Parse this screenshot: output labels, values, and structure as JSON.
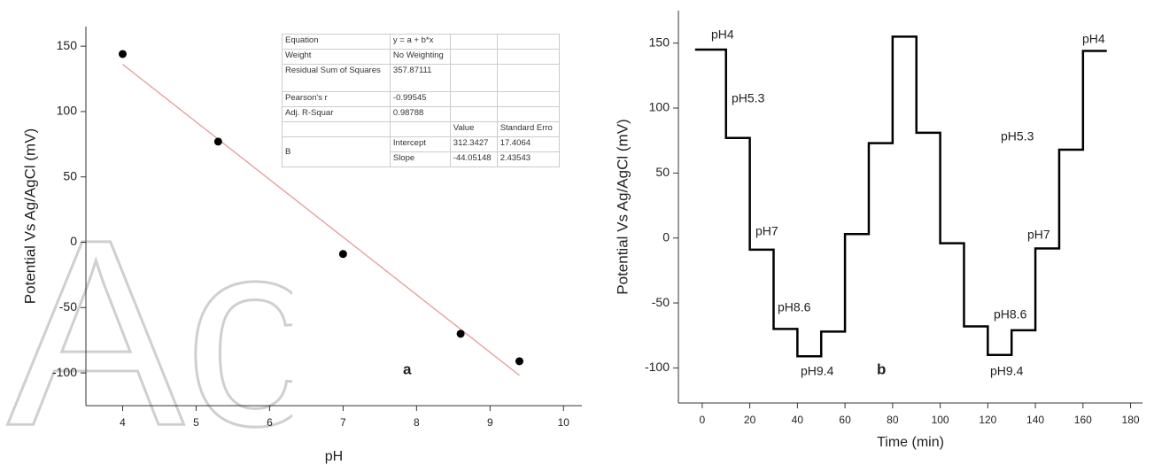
{
  "chart_data": [
    {
      "type": "scatter",
      "panel_label": "a",
      "xlabel": "pH",
      "ylabel": "Potential Vs Ag/AgCl (mV)",
      "watermark": "Accepted",
      "x": [
        4,
        5.3,
        7,
        8.6,
        9.4
      ],
      "values": [
        144,
        77,
        -9,
        -70,
        -91
      ],
      "color": "#000000",
      "fit": {
        "x": [
          4,
          9.4
        ],
        "values": [
          136.1,
          -101.8
        ],
        "color": "#e39a9a"
      },
      "xlim": [
        3.5,
        10.25
      ],
      "ylim": [
        -125,
        165
      ],
      "xticks": [
        4,
        5,
        6,
        7,
        8,
        9,
        10
      ],
      "yticks": [
        -100,
        -50,
        0,
        50,
        100,
        150
      ]
    },
    {
      "type": "line",
      "panel_label": "b",
      "xlabel": "Time (min)",
      "ylabel": "Potential Vs Ag/AgCl (mV)",
      "x": [
        -3,
        10,
        10,
        20,
        20,
        30,
        30,
        40,
        40,
        50,
        50,
        60,
        60,
        70,
        70,
        80,
        80,
        90,
        90,
        100,
        100,
        110,
        110,
        120,
        120,
        130,
        130,
        140,
        140,
        150,
        150,
        160,
        160,
        170
      ],
      "values": [
        145,
        145,
        77,
        77,
        -9,
        -9,
        -70,
        -70,
        -91,
        -91,
        -72,
        -72,
        3,
        3,
        73,
        73,
        155,
        155,
        81,
        81,
        -4,
        -4,
        -68,
        -68,
        -90,
        -90,
        -71,
        -71,
        -8,
        -8,
        68,
        68,
        144,
        144
      ],
      "color": "#000000",
      "annotations": [
        "pH4",
        "pH5.3",
        "pH7",
        "pH8.6",
        "pH9.4",
        "pH8.6",
        "pH9.4",
        "pH7",
        "pH5.3",
        "pH4"
      ],
      "xlim": [
        -10,
        185
      ],
      "ylim": [
        -127,
        175
      ],
      "xticks": [
        0,
        20,
        40,
        60,
        80,
        100,
        120,
        140,
        160,
        180
      ],
      "yticks": [
        -100,
        -50,
        0,
        50,
        100,
        150
      ]
    }
  ],
  "fit_table": {
    "rows": [
      [
        "Equation",
        "y = a + b*x"
      ],
      [
        "Weight",
        "No Weighting"
      ],
      [
        "Residual Sum of Squares",
        "357.87111"
      ],
      [
        "Pearson's r",
        "-0.99545"
      ],
      [
        "Adj. R-Squar",
        "0.98788"
      ],
      [
        "Value",
        "Standard Erro"
      ],
      [
        "B",
        "Intercept",
        "312.3427",
        "17.4064"
      ],
      [
        "Slope",
        "-44.05148",
        "2.43543"
      ]
    ]
  }
}
